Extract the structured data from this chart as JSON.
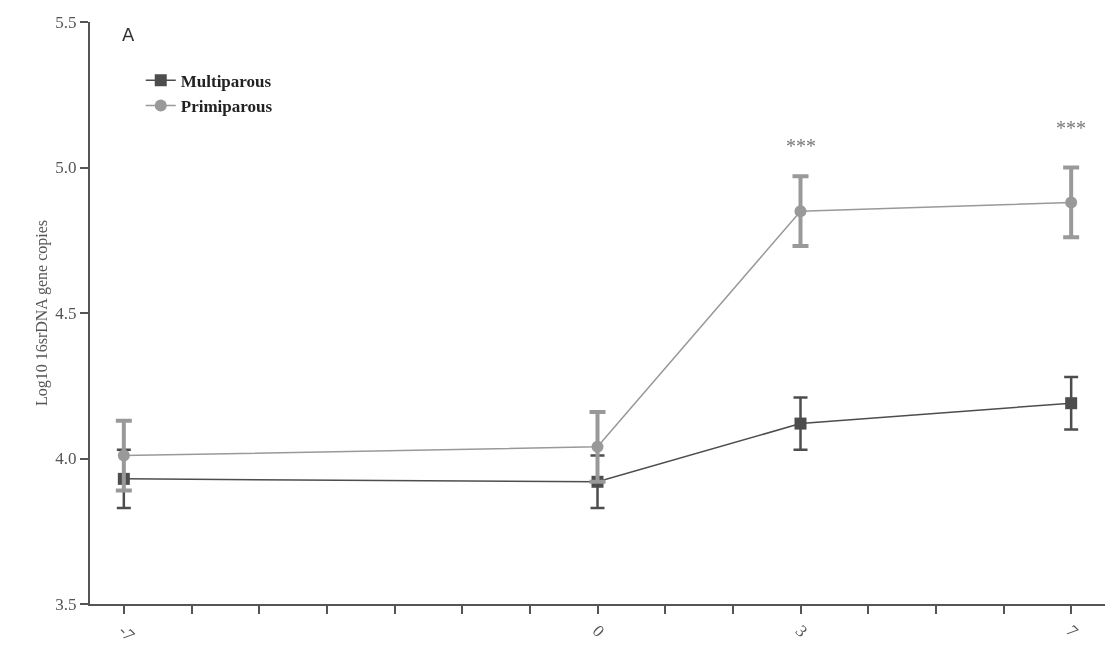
{
  "chart_data": {
    "type": "line",
    "ylabel": "Log10 16srDNA gene copies",
    "x": [
      -7,
      0,
      3,
      7
    ],
    "series": [
      {
        "name": "Multiparous",
        "color": "#4d4d4d",
        "marker": "square",
        "values": [
          3.93,
          3.92,
          4.12,
          4.19
        ],
        "errors": [
          0.1,
          0.09,
          0.09,
          0.09
        ]
      },
      {
        "name": "Primiparous",
        "color": "#999999",
        "marker": "circle",
        "values": [
          4.01,
          4.04,
          4.85,
          4.88
        ],
        "errors": [
          0.12,
          0.12,
          0.12,
          0.12
        ]
      }
    ],
    "xlim": [
      -7.5,
      7.5
    ],
    "xticks": [
      -7,
      {
        "value": -6,
        "label": null
      },
      {
        "value": -5,
        "label": null
      },
      {
        "value": -4,
        "label": null
      },
      {
        "value": -3,
        "label": null
      },
      {
        "value": -2,
        "label": null
      },
      {
        "value": -1,
        "label": null
      },
      0,
      {
        "value": 1,
        "label": null
      },
      {
        "value": 2,
        "label": null
      },
      3,
      {
        "value": 4,
        "label": null
      },
      {
        "value": 5,
        "label": null
      },
      {
        "value": 6,
        "label": null
      },
      7
    ],
    "ylim": [
      3.5,
      5.5
    ],
    "yticks": [
      3.5,
      {
        "value": 4,
        "label": "4.0"
      },
      4.5,
      {
        "value": 5,
        "label": "5.0"
      },
      5.5
    ],
    "grid": false,
    "legend": "top left",
    "annotations": [
      "A",
      "***",
      "***"
    ]
  }
}
